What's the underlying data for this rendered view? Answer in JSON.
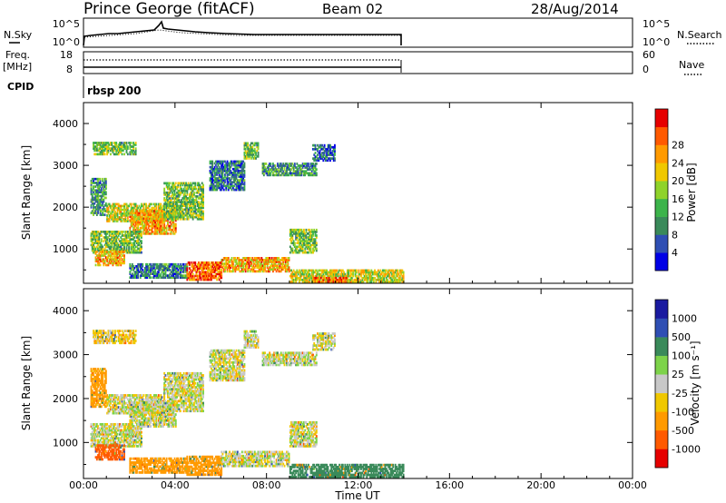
{
  "header": {
    "station": "Prince George (fitACF)",
    "beam": "Beam 02",
    "date": "28/Aug/2014"
  },
  "top_panels": {
    "nsky_label": "N.Sky",
    "nsky_ticks": [
      "10^5",
      "10^0"
    ],
    "nsearch_label": "N.Search",
    "nsearch_ticks": [
      "10^5",
      "10^0"
    ],
    "freq_label": "Freq.",
    "freq_unit": "[MHz]",
    "freq_ticks": [
      "18",
      "8"
    ],
    "nave_label": "Nave",
    "nave_ticks": [
      "60",
      "0"
    ],
    "cpid_label": "CPID",
    "cpid_value": "rbsp 200"
  },
  "x_axis": {
    "label": "Time UT",
    "ticks": [
      "00:00",
      "04:00",
      "08:00",
      "12:00",
      "16:00",
      "20:00",
      "00:00"
    ]
  },
  "colors": {
    "power": [
      "#0000e6",
      "#2f4fb4",
      "#3a8a5a",
      "#3cb44b",
      "#8fd32a",
      "#f0c800",
      "#ff9a00",
      "#ff5a00",
      "#e60000"
    ],
    "velocity": [
      "#e60000",
      "#ff5a00",
      "#ff9a00",
      "#f0c800",
      "#c8c8c8",
      "#7dd34a",
      "#3a8a5a",
      "#2f4fb4",
      "#1a1aa0"
    ]
  },
  "chart_data": [
    {
      "type": "heatmap",
      "title": "Power",
      "ylabel": "Slant Range [km]",
      "xlabel": "",
      "ylim": [
        180,
        4500
      ],
      "xlim": [
        0,
        24
      ],
      "yticks": [
        1000,
        2000,
        3000,
        4000
      ],
      "colorbar": {
        "label": "Power [dB]",
        "ticks": [
          "4",
          "8",
          "12",
          "16",
          "20",
          "24",
          "28"
        ],
        "range": [
          0,
          32
        ]
      },
      "echo_regions": [
        {
          "t0": 0.4,
          "t1": 2.3,
          "r0": 3250,
          "r1": 3550,
          "v": 14
        },
        {
          "t0": 0.3,
          "t1": 1.0,
          "r0": 1800,
          "r1": 2700,
          "v": 10
        },
        {
          "t0": 1.0,
          "t1": 3.5,
          "r0": 1650,
          "r1": 2100,
          "v": 18
        },
        {
          "t0": 2.0,
          "t1": 4.0,
          "r0": 1350,
          "r1": 1900,
          "v": 22
        },
        {
          "t0": 3.5,
          "t1": 5.2,
          "r0": 1700,
          "r1": 2600,
          "v": 14
        },
        {
          "t0": 0.3,
          "t1": 2.5,
          "r0": 900,
          "r1": 1400,
          "v": 14
        },
        {
          "t0": 0.5,
          "t1": 1.8,
          "r0": 600,
          "r1": 950,
          "v": 22
        },
        {
          "t0": 2.0,
          "t1": 4.5,
          "r0": 300,
          "r1": 650,
          "v": 8
        },
        {
          "t0": 4.5,
          "t1": 6.0,
          "r0": 250,
          "r1": 700,
          "v": 26
        },
        {
          "t0": 6.0,
          "t1": 9.0,
          "r0": 450,
          "r1": 800,
          "v": 22
        },
        {
          "t0": 9.0,
          "t1": 10.2,
          "r0": 900,
          "r1": 1450,
          "v": 14
        },
        {
          "t0": 5.5,
          "t1": 7.0,
          "r0": 2400,
          "r1": 3100,
          "v": 8
        },
        {
          "t0": 7.0,
          "t1": 7.6,
          "r0": 3150,
          "r1": 3550,
          "v": 14
        },
        {
          "t0": 7.8,
          "t1": 10.2,
          "r0": 2750,
          "r1": 3050,
          "v": 10
        },
        {
          "t0": 10.0,
          "t1": 11.0,
          "r0": 3100,
          "r1": 3500,
          "v": 6
        },
        {
          "t0": 9.0,
          "t1": 14.0,
          "r0": 200,
          "r1": 500,
          "v": 18
        },
        {
          "t0": 10.0,
          "t1": 11.5,
          "r0": 200,
          "r1": 300,
          "v": 26
        }
      ]
    },
    {
      "type": "heatmap",
      "title": "Velocity",
      "ylabel": "Slant Range [km]",
      "xlabel": "Time UT",
      "ylim": [
        180,
        4500
      ],
      "xlim": [
        0,
        24
      ],
      "yticks": [
        1000,
        2000,
        3000,
        4000
      ],
      "colorbar": {
        "label": "Velocity [m s⁻¹]",
        "ticks": [
          "-1000",
          "-500",
          "-100",
          "-25",
          "25",
          "100",
          "500",
          "1000"
        ],
        "range": [
          -1200,
          1200
        ]
      },
      "echo_regions": [
        {
          "t0": 0.4,
          "t1": 2.3,
          "r0": 3250,
          "r1": 3550,
          "v": -60
        },
        {
          "t0": 0.3,
          "t1": 1.0,
          "r0": 1800,
          "r1": 2700,
          "v": -150
        },
        {
          "t0": 1.0,
          "t1": 3.5,
          "r0": 1650,
          "r1": 2100,
          "v": 0
        },
        {
          "t0": 2.0,
          "t1": 4.0,
          "r0": 1350,
          "r1": 1900,
          "v": 0
        },
        {
          "t0": 3.5,
          "t1": 5.2,
          "r0": 1700,
          "r1": 2600,
          "v": 0
        },
        {
          "t0": 0.3,
          "t1": 2.5,
          "r0": 900,
          "r1": 1400,
          "v": 0
        },
        {
          "t0": 0.5,
          "t1": 1.8,
          "r0": 600,
          "r1": 950,
          "v": -600
        },
        {
          "t0": 2.0,
          "t1": 4.5,
          "r0": 300,
          "r1": 650,
          "v": -300
        },
        {
          "t0": 4.5,
          "t1": 6.0,
          "r0": 250,
          "r1": 700,
          "v": -200
        },
        {
          "t0": 6.0,
          "t1": 9.0,
          "r0": 450,
          "r1": 800,
          "v": 0
        },
        {
          "t0": 9.0,
          "t1": 10.2,
          "r0": 900,
          "r1": 1450,
          "v": 0
        },
        {
          "t0": 5.5,
          "t1": 7.0,
          "r0": 2400,
          "r1": 3100,
          "v": 0
        },
        {
          "t0": 7.0,
          "t1": 7.6,
          "r0": 3150,
          "r1": 3550,
          "v": 0
        },
        {
          "t0": 7.8,
          "t1": 10.2,
          "r0": 2750,
          "r1": 3050,
          "v": 0
        },
        {
          "t0": 10.0,
          "t1": 11.0,
          "r0": 3100,
          "r1": 3500,
          "v": 0
        },
        {
          "t0": 9.0,
          "t1": 14.0,
          "r0": 200,
          "r1": 500,
          "v": 200
        },
        {
          "t0": 10.0,
          "t1": 11.5,
          "r0": 200,
          "r1": 300,
          "v": 400
        }
      ]
    }
  ]
}
